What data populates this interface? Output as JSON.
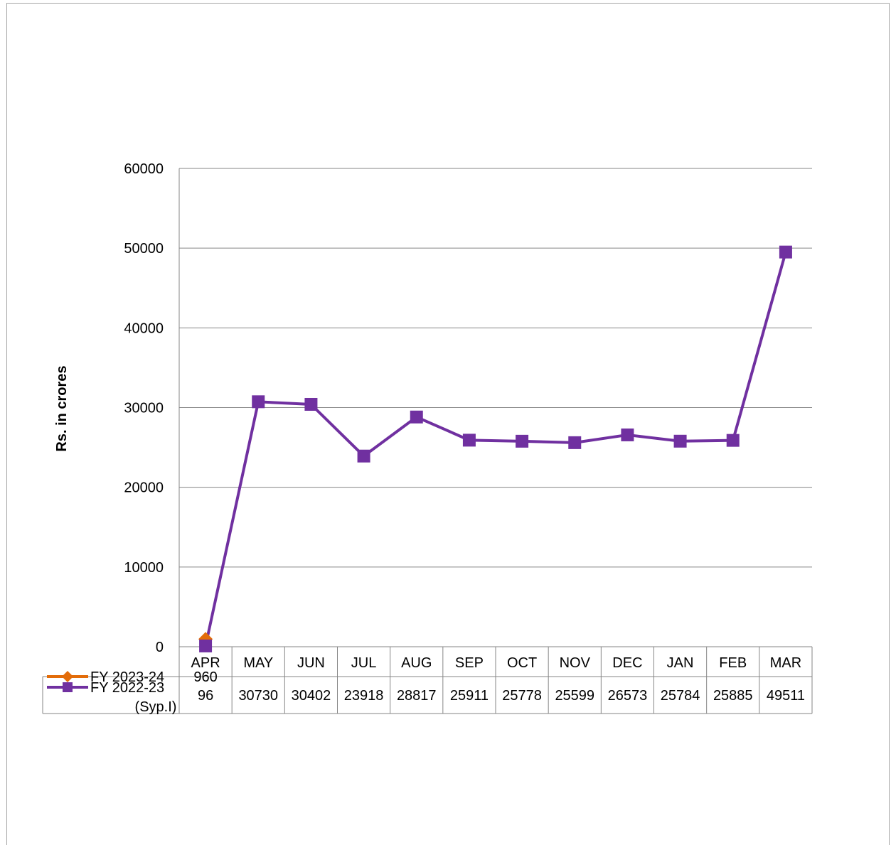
{
  "chart_data": {
    "type": "line",
    "title": "",
    "xlabel": "",
    "ylabel": "Rs. in crores",
    "ylim": [
      0,
      60000
    ],
    "yticks": [
      "0",
      "10000",
      "20000",
      "30000",
      "40000",
      "50000",
      "60000"
    ],
    "grid": true,
    "legend": "data-table",
    "categories": [
      "APR",
      "MAY",
      "JUN",
      "JUL",
      "AUG",
      "SEP",
      "OCT",
      "NOV",
      "DEC",
      "JAN",
      "FEB",
      "MAR"
    ],
    "series": [
      {
        "name": "FY 2023-24",
        "label_lines": [
          "FY 2023-24"
        ],
        "color": "#e36c09",
        "marker": "diamond",
        "values": [
          960,
          null,
          null,
          null,
          null,
          null,
          null,
          null,
          null,
          null,
          null,
          null
        ],
        "table_values": [
          "960",
          "",
          "",
          "",
          "",
          "",
          "",
          "",
          "",
          "",
          "",
          ""
        ]
      },
      {
        "name": "FY 2022-23 (Syp.I)",
        "label_lines": [
          "FY 2022-23",
          "(Syp.I)"
        ],
        "color": "#7030a0",
        "marker": "square",
        "values": [
          96,
          30730,
          30402,
          23918,
          28817,
          25911,
          25778,
          25599,
          26573,
          25784,
          25885,
          49511
        ],
        "table_values": [
          "96",
          "30730",
          "30402",
          "23918",
          "28817",
          "25911",
          "25778",
          "25599",
          "26573",
          "25784",
          "25885",
          "49511"
        ]
      }
    ]
  }
}
